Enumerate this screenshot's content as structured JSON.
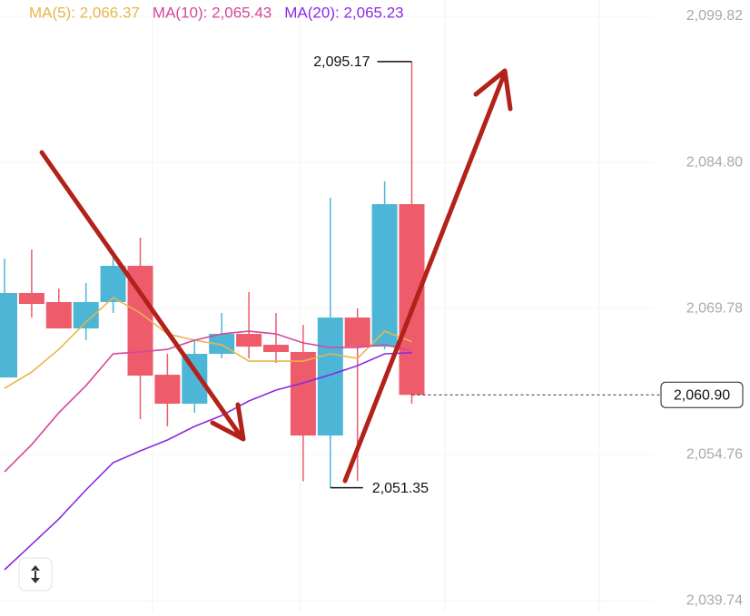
{
  "chart_data": {
    "type": "candlestick",
    "categories": [
      null,
      null,
      null,
      null,
      null,
      null,
      null,
      null,
      null,
      null,
      null,
      null,
      null,
      null,
      null,
      null
    ],
    "up_color": "#4db6d6",
    "down_color": "#ee5b6b",
    "open": [
      2062.69,
      2071.37,
      2070.44,
      2067.73,
      2070.44,
      2074.17,
      2062.97,
      2059.99,
      2065.12,
      2067.17,
      2066.05,
      2065.31,
      2056.72,
      2068.85,
      2065.86,
      2080.51
    ],
    "high": [
      2074.91,
      2075.85,
      2071.84,
      2072.4,
      2075.19,
      2077.06,
      2065.12,
      2066.52,
      2069.32,
      2071.46,
      2069.32,
      2068.1,
      2081.16,
      2069.78,
      2082.84,
      2095.17
    ],
    "low": [
      2062.69,
      2068.85,
      2067.73,
      2066.52,
      2069.32,
      2058.4,
      2057.66,
      2059.06,
      2064.65,
      2064.65,
      2064.18,
      2052.0,
      2051.35,
      2052.06,
      2065.6,
      2059.99
    ],
    "close": [
      2071.37,
      2070.25,
      2067.73,
      2070.44,
      2074.17,
      2062.88,
      2059.99,
      2065.12,
      2067.17,
      2065.86,
      2065.31,
      2056.72,
      2068.85,
      2065.86,
      2080.51,
      2060.9
    ],
    "series": [
      {
        "name": "MA(5)",
        "legend": "MA(5): 2,066.37",
        "color": "#e8b64a",
        "values": [
          2061.57,
          2063.25,
          2065.58,
          2068.38,
          2070.9,
          2069.32,
          2067.17,
          2066.52,
          2066.05,
          2064.37,
          2064.37,
          2064.37,
          2065.12,
          2064.65,
          2067.45,
          2066.37
        ]
      },
      {
        "name": "MA(10)",
        "legend": "MA(10): 2,065.43",
        "color": "#d4489a",
        "values": [
          2052.99,
          2055.79,
          2059.06,
          2061.85,
          2065.12,
          2065.31,
          2065.58,
          2066.52,
          2067.17,
          2067.45,
          2067.17,
          2066.24,
          2065.77,
          2065.77,
          2066.05,
          2065.43
        ]
      },
      {
        "name": "MA(20)",
        "legend": "MA(20): 2,065.23",
        "color": "#8a2be2",
        "values": [
          2042.92,
          2045.53,
          2048.14,
          2051.13,
          2053.93,
          2055.14,
          2056.26,
          2057.66,
          2058.78,
          2060.27,
          2061.39,
          2062.13,
          2062.97,
          2063.9,
          2065.12,
          2065.23
        ]
      }
    ],
    "ylim": [
      2038.63,
      2101.5
    ],
    "yticks": [
      {
        "value": 2099.82,
        "label": "2,099.82"
      },
      {
        "value": 2084.8,
        "label": "2,084.80"
      },
      {
        "value": 2069.78,
        "label": "2,069.78"
      },
      {
        "value": 2054.76,
        "label": "2,054.76"
      },
      {
        "value": 2039.74,
        "label": "2,039.74"
      }
    ],
    "grid": true,
    "high_marker": {
      "value": 2095.17,
      "label": "2,095.17"
    },
    "low_marker": {
      "value": 2051.35,
      "label": "2,051.35"
    },
    "last_price": {
      "value": 2060.9,
      "label": "2,060.90"
    }
  }
}
